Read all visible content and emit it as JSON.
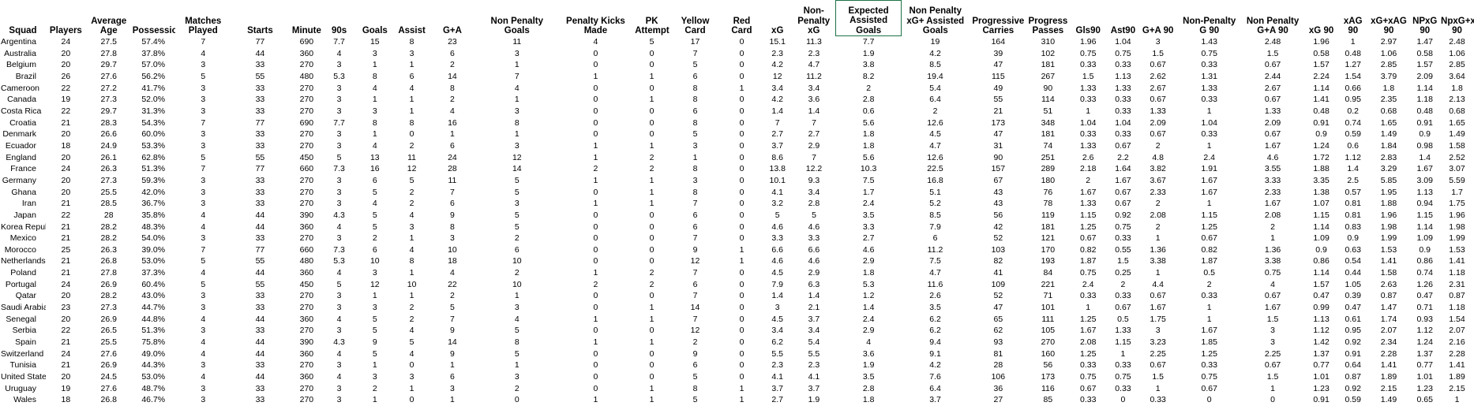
{
  "sheet": {
    "headers": [
      "Squad",
      "Players",
      "Average Age",
      "Possession",
      "Matches Played",
      "Starts",
      "Minute",
      "90s",
      "Goals",
      "Assist",
      "G+A",
      "Non Penalty Goals",
      "Penalty Kicks Made",
      "PK Attempt",
      "Yellow Card",
      "Red Card",
      "xG",
      "Non-Penalty xG",
      "Expected Assisted Goals",
      "Non Penalty xG+ Assisted Goals",
      "Progressive Carries",
      "Progressive Passes",
      "Gls90",
      "Ast90",
      "G+A 90",
      "Non-Penalty G 90",
      "Non Penalty G+A 90",
      "xG 90",
      "xAG 90",
      "xG+xAG 90",
      "NPxG 90",
      "NpxG+xAG 90"
    ],
    "selected_header_index": 18,
    "selection_border_color": "#1e7145",
    "rows": [
      [
        "Argentina",
        "24",
        "27.5",
        "57.4%",
        "7",
        "77",
        "690",
        "7.7",
        "15",
        "8",
        "23",
        "11",
        "4",
        "5",
        "17",
        "0",
        "15.1",
        "11.3",
        "7.7",
        "19",
        "164",
        "310",
        "1.96",
        "1.04",
        "3",
        "1.43",
        "2.48",
        "1.96",
        "1",
        "2.97",
        "1.47",
        "2.48"
      ],
      [
        "Australia",
        "20",
        "27.8",
        "37.8%",
        "4",
        "44",
        "360",
        "4",
        "3",
        "3",
        "6",
        "3",
        "0",
        "0",
        "7",
        "0",
        "2.3",
        "2.3",
        "1.9",
        "4.2",
        "39",
        "102",
        "0.75",
        "0.75",
        "1.5",
        "0.75",
        "1.5",
        "0.58",
        "0.48",
        "1.06",
        "0.58",
        "1.06"
      ],
      [
        "Belgium",
        "20",
        "29.7",
        "57.0%",
        "3",
        "33",
        "270",
        "3",
        "1",
        "1",
        "2",
        "1",
        "0",
        "0",
        "5",
        "0",
        "4.2",
        "4.7",
        "3.8",
        "8.5",
        "47",
        "181",
        "0.33",
        "0.33",
        "0.67",
        "0.33",
        "0.67",
        "1.57",
        "1.27",
        "2.85",
        "1.57",
        "2.85"
      ],
      [
        "Brazil",
        "26",
        "27.6",
        "56.2%",
        "5",
        "55",
        "480",
        "5.3",
        "8",
        "6",
        "14",
        "7",
        "1",
        "1",
        "6",
        "0",
        "12",
        "11.2",
        "8.2",
        "19.4",
        "115",
        "267",
        "1.5",
        "1.13",
        "2.62",
        "1.31",
        "2.44",
        "2.24",
        "1.54",
        "3.79",
        "2.09",
        "3.64"
      ],
      [
        "Cameroon",
        "22",
        "27.2",
        "41.7%",
        "3",
        "33",
        "270",
        "3",
        "4",
        "4",
        "8",
        "4",
        "0",
        "0",
        "8",
        "1",
        "3.4",
        "3.4",
        "2",
        "5.4",
        "49",
        "90",
        "1.33",
        "1.33",
        "2.67",
        "1.33",
        "2.67",
        "1.14",
        "0.66",
        "1.8",
        "1.14",
        "1.8"
      ],
      [
        "Canada",
        "19",
        "27.3",
        "52.0%",
        "3",
        "33",
        "270",
        "3",
        "1",
        "1",
        "2",
        "1",
        "0",
        "1",
        "8",
        "0",
        "4.2",
        "3.6",
        "2.8",
        "6.4",
        "55",
        "114",
        "0.33",
        "0.33",
        "0.67",
        "0.33",
        "0.67",
        "1.41",
        "0.95",
        "2.35",
        "1.18",
        "2.13"
      ],
      [
        "Costa Rica",
        "22",
        "29.7",
        "31.3%",
        "3",
        "33",
        "270",
        "3",
        "3",
        "1",
        "4",
        "3",
        "0",
        "0",
        "6",
        "0",
        "1.4",
        "1.4",
        "0.6",
        "2",
        "21",
        "51",
        "1",
        "0.33",
        "1.33",
        "1",
        "1.33",
        "0.48",
        "0.2",
        "0.68",
        "0.48",
        "0.68"
      ],
      [
        "Croatia",
        "21",
        "28.3",
        "54.3%",
        "7",
        "77",
        "690",
        "7.7",
        "8",
        "8",
        "16",
        "8",
        "0",
        "0",
        "8",
        "0",
        "7",
        "7",
        "5.6",
        "12.6",
        "173",
        "348",
        "1.04",
        "1.04",
        "2.09",
        "1.04",
        "2.09",
        "0.91",
        "0.74",
        "1.65",
        "0.91",
        "1.65"
      ],
      [
        "Denmark",
        "20",
        "26.6",
        "60.0%",
        "3",
        "33",
        "270",
        "3",
        "1",
        "0",
        "1",
        "1",
        "0",
        "0",
        "5",
        "0",
        "2.7",
        "2.7",
        "1.8",
        "4.5",
        "47",
        "181",
        "0.33",
        "0.33",
        "0.67",
        "0.33",
        "0.67",
        "0.9",
        "0.59",
        "1.49",
        "0.9",
        "1.49"
      ],
      [
        "Ecuador",
        "18",
        "24.9",
        "53.3%",
        "3",
        "33",
        "270",
        "3",
        "4",
        "2",
        "6",
        "3",
        "1",
        "1",
        "3",
        "0",
        "3.7",
        "2.9",
        "1.8",
        "4.7",
        "31",
        "74",
        "1.33",
        "0.67",
        "2",
        "1",
        "1.67",
        "1.24",
        "0.6",
        "1.84",
        "0.98",
        "1.58"
      ],
      [
        "England",
        "20",
        "26.1",
        "62.8%",
        "5",
        "55",
        "450",
        "5",
        "13",
        "11",
        "24",
        "12",
        "1",
        "2",
        "1",
        "0",
        "8.6",
        "7",
        "5.6",
        "12.6",
        "90",
        "251",
        "2.6",
        "2.2",
        "4.8",
        "2.4",
        "4.6",
        "1.72",
        "1.12",
        "2.83",
        "1.4",
        "2.52"
      ],
      [
        "France",
        "24",
        "26.3",
        "51.3%",
        "7",
        "77",
        "660",
        "7.3",
        "16",
        "12",
        "28",
        "14",
        "2",
        "2",
        "8",
        "0",
        "13.8",
        "12.2",
        "10.3",
        "22.5",
        "157",
        "289",
        "2.18",
        "1.64",
        "3.82",
        "1.91",
        "3.55",
        "1.88",
        "1.4",
        "3.29",
        "1.67",
        "3.07"
      ],
      [
        "Germany",
        "20",
        "27.3",
        "59.3%",
        "3",
        "33",
        "270",
        "3",
        "6",
        "5",
        "11",
        "5",
        "1",
        "1",
        "3",
        "0",
        "10.1",
        "9.3",
        "7.5",
        "16.8",
        "67",
        "180",
        "2",
        "1.67",
        "3.67",
        "1.67",
        "3.33",
        "3.35",
        "2.5",
        "5.85",
        "3.09",
        "5.59"
      ],
      [
        "Ghana",
        "20",
        "25.5",
        "42.0%",
        "3",
        "33",
        "270",
        "3",
        "5",
        "2",
        "7",
        "5",
        "0",
        "1",
        "8",
        "0",
        "4.1",
        "3.4",
        "1.7",
        "5.1",
        "43",
        "76",
        "1.67",
        "0.67",
        "2.33",
        "1.67",
        "2.33",
        "1.38",
        "0.57",
        "1.95",
        "1.13",
        "1.7"
      ],
      [
        "Iran",
        "21",
        "28.5",
        "36.7%",
        "3",
        "33",
        "270",
        "3",
        "4",
        "2",
        "6",
        "3",
        "1",
        "1",
        "7",
        "0",
        "3.2",
        "2.8",
        "2.4",
        "5.2",
        "43",
        "78",
        "1.33",
        "0.67",
        "2",
        "1",
        "1.67",
        "1.07",
        "0.81",
        "1.88",
        "0.94",
        "1.75"
      ],
      [
        "Japan",
        "22",
        "28",
        "35.8%",
        "4",
        "44",
        "390",
        "4.3",
        "5",
        "4",
        "9",
        "5",
        "0",
        "0",
        "6",
        "0",
        "5",
        "5",
        "3.5",
        "8.5",
        "56",
        "119",
        "1.15",
        "0.92",
        "2.08",
        "1.15",
        "2.08",
        "1.15",
        "0.81",
        "1.96",
        "1.15",
        "1.96"
      ],
      [
        "Korea Republic",
        "21",
        "28.2",
        "48.3%",
        "4",
        "44",
        "360",
        "4",
        "5",
        "3",
        "8",
        "5",
        "0",
        "0",
        "6",
        "0",
        "4.6",
        "4.6",
        "3.3",
        "7.9",
        "42",
        "181",
        "1.25",
        "0.75",
        "2",
        "1.25",
        "2",
        "1.14",
        "0.83",
        "1.98",
        "1.14",
        "1.98"
      ],
      [
        "Mexico",
        "21",
        "28.2",
        "54.0%",
        "3",
        "33",
        "270",
        "3",
        "2",
        "1",
        "3",
        "2",
        "0",
        "0",
        "7",
        "0",
        "3.3",
        "3.3",
        "2.7",
        "6",
        "52",
        "121",
        "0.67",
        "0.33",
        "1",
        "0.67",
        "1",
        "1.09",
        "0.9",
        "1.99",
        "1.09",
        "1.99"
      ],
      [
        "Morocco",
        "25",
        "26.3",
        "39.0%",
        "7",
        "77",
        "660",
        "7.3",
        "6",
        "4",
        "10",
        "6",
        "0",
        "0",
        "9",
        "1",
        "6.6",
        "6.6",
        "4.6",
        "11.2",
        "103",
        "170",
        "0.82",
        "0.55",
        "1.36",
        "0.82",
        "1.36",
        "0.9",
        "0.63",
        "1.53",
        "0.9",
        "1.53"
      ],
      [
        "Netherlands",
        "21",
        "26.8",
        "53.0%",
        "5",
        "55",
        "480",
        "5.3",
        "10",
        "8",
        "18",
        "10",
        "0",
        "0",
        "12",
        "1",
        "4.6",
        "4.6",
        "2.9",
        "7.5",
        "82",
        "193",
        "1.87",
        "1.5",
        "3.38",
        "1.87",
        "3.38",
        "0.86",
        "0.54",
        "1.41",
        "0.86",
        "1.41"
      ],
      [
        "Poland",
        "21",
        "27.8",
        "37.3%",
        "4",
        "44",
        "360",
        "4",
        "3",
        "1",
        "4",
        "2",
        "1",
        "2",
        "7",
        "0",
        "4.5",
        "2.9",
        "1.8",
        "4.7",
        "41",
        "84",
        "0.75",
        "0.25",
        "1",
        "0.5",
        "0.75",
        "1.14",
        "0.44",
        "1.58",
        "0.74",
        "1.18"
      ],
      [
        "Portugal",
        "24",
        "26.9",
        "60.4%",
        "5",
        "55",
        "450",
        "5",
        "12",
        "10",
        "22",
        "10",
        "2",
        "2",
        "6",
        "0",
        "7.9",
        "6.3",
        "5.3",
        "11.6",
        "109",
        "221",
        "2.4",
        "2",
        "4.4",
        "2",
        "4",
        "1.57",
        "1.05",
        "2.63",
        "1.26",
        "2.31"
      ],
      [
        "Qatar",
        "20",
        "28.2",
        "43.0%",
        "3",
        "33",
        "270",
        "3",
        "1",
        "1",
        "2",
        "1",
        "0",
        "0",
        "7",
        "0",
        "1.4",
        "1.4",
        "1.2",
        "2.6",
        "52",
        "71",
        "0.33",
        "0.33",
        "0.67",
        "0.33",
        "0.67",
        "0.47",
        "0.39",
        "0.87",
        "0.47",
        "0.87"
      ],
      [
        "Saudi Arabia",
        "23",
        "27.3",
        "44.7%",
        "3",
        "33",
        "270",
        "3",
        "3",
        "2",
        "5",
        "3",
        "0",
        "1",
        "14",
        "0",
        "3",
        "2.1",
        "1.4",
        "3.5",
        "47",
        "101",
        "1",
        "0.67",
        "1.67",
        "1",
        "1.67",
        "0.99",
        "0.47",
        "1.47",
        "0.71",
        "1.18"
      ],
      [
        "Senegal",
        "20",
        "26.9",
        "44.8%",
        "4",
        "44",
        "360",
        "4",
        "5",
        "2",
        "7",
        "4",
        "1",
        "1",
        "7",
        "0",
        "4.5",
        "3.7",
        "2.4",
        "6.2",
        "65",
        "111",
        "1.25",
        "0.5",
        "1.75",
        "1",
        "1.5",
        "1.13",
        "0.61",
        "1.74",
        "0.93",
        "1.54"
      ],
      [
        "Serbia",
        "22",
        "26.5",
        "51.3%",
        "3",
        "33",
        "270",
        "3",
        "5",
        "4",
        "9",
        "5",
        "0",
        "0",
        "12",
        "0",
        "3.4",
        "3.4",
        "2.9",
        "6.2",
        "62",
        "105",
        "1.67",
        "1.33",
        "3",
        "1.67",
        "3",
        "1.12",
        "0.95",
        "2.07",
        "1.12",
        "2.07"
      ],
      [
        "Spain",
        "21",
        "25.5",
        "75.8%",
        "4",
        "44",
        "390",
        "4.3",
        "9",
        "5",
        "14",
        "8",
        "1",
        "1",
        "2",
        "0",
        "6.2",
        "5.4",
        "4",
        "9.4",
        "93",
        "270",
        "2.08",
        "1.15",
        "3.23",
        "1.85",
        "3",
        "1.42",
        "0.92",
        "2.34",
        "1.24",
        "2.16"
      ],
      [
        "Switzerland",
        "24",
        "27.6",
        "49.0%",
        "4",
        "44",
        "360",
        "4",
        "5",
        "4",
        "9",
        "5",
        "0",
        "0",
        "9",
        "0",
        "5.5",
        "5.5",
        "3.6",
        "9.1",
        "81",
        "160",
        "1.25",
        "1",
        "2.25",
        "1.25",
        "2.25",
        "1.37",
        "0.91",
        "2.28",
        "1.37",
        "2.28"
      ],
      [
        "Tunisia",
        "21",
        "26.9",
        "44.3%",
        "3",
        "33",
        "270",
        "3",
        "1",
        "0",
        "1",
        "1",
        "0",
        "0",
        "6",
        "0",
        "2.3",
        "2.3",
        "1.9",
        "4.2",
        "28",
        "56",
        "0.33",
        "0.33",
        "0.67",
        "0.33",
        "0.67",
        "0.77",
        "0.64",
        "1.41",
        "0.77",
        "1.41"
      ],
      [
        "United States",
        "20",
        "24.5",
        "53.0%",
        "4",
        "44",
        "360",
        "4",
        "3",
        "3",
        "6",
        "3",
        "0",
        "0",
        "5",
        "0",
        "4.1",
        "4.1",
        "3.5",
        "7.6",
        "106",
        "173",
        "0.75",
        "0.75",
        "1.5",
        "0.75",
        "1.5",
        "1.01",
        "0.87",
        "1.89",
        "1.01",
        "1.89"
      ],
      [
        "Uruguay",
        "19",
        "27.6",
        "48.7%",
        "3",
        "33",
        "270",
        "3",
        "2",
        "1",
        "3",
        "2",
        "0",
        "1",
        "8",
        "1",
        "3.7",
        "3.7",
        "2.8",
        "6.4",
        "36",
        "116",
        "0.67",
        "0.33",
        "1",
        "0.67",
        "1",
        "1.23",
        "0.92",
        "2.15",
        "1.23",
        "2.15"
      ],
      [
        "Wales",
        "18",
        "26.8",
        "46.7%",
        "3",
        "33",
        "270",
        "3",
        "1",
        "0",
        "1",
        "0",
        "1",
        "1",
        "5",
        "1",
        "2.7",
        "1.9",
        "1.8",
        "3.7",
        "27",
        "85",
        "0.33",
        "0",
        "0.33",
        "0",
        "0",
        "0.91",
        "0.59",
        "1.49",
        "0.65",
        "1"
      ]
    ]
  }
}
